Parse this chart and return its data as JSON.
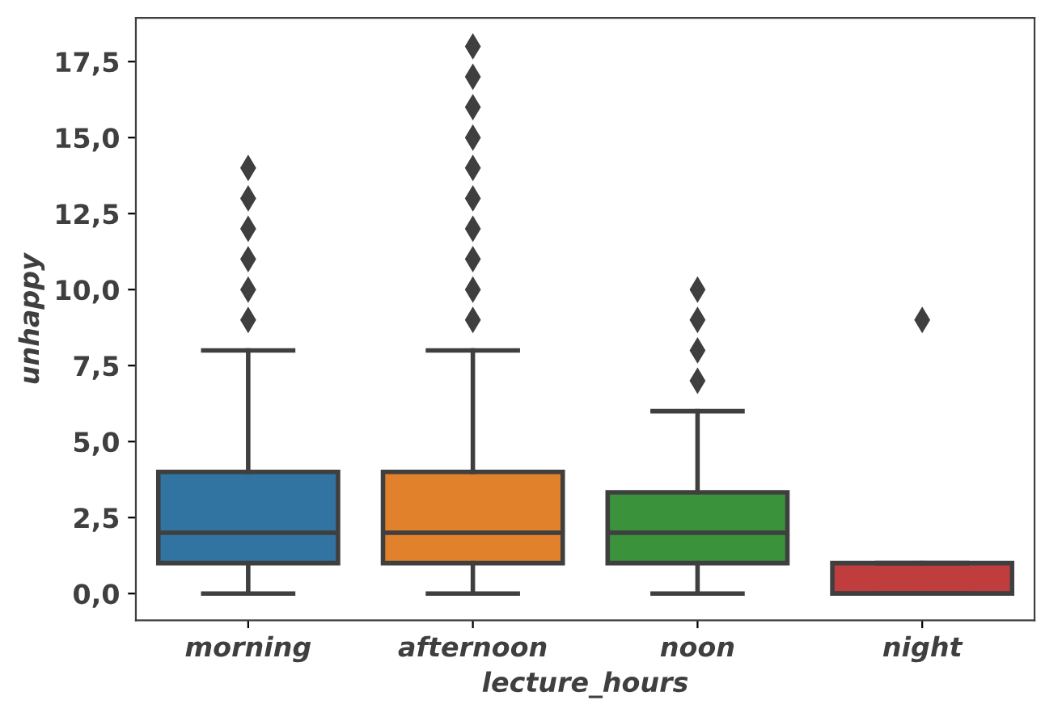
{
  "chart_data": {
    "type": "box",
    "xlabel": "lecture_hours",
    "ylabel": "unhappy",
    "categories": [
      "morning",
      "afternoon",
      "noon",
      "night"
    ],
    "colors": [
      "#3274a1",
      "#e1812c",
      "#3a923a",
      "#c03d3e"
    ],
    "boxes": [
      {
        "low": 0,
        "q1": 1,
        "median": 2,
        "q3": 4,
        "high": 8,
        "outliers": [
          9,
          10,
          11,
          12,
          13,
          14
        ]
      },
      {
        "low": 0,
        "q1": 1,
        "median": 2,
        "q3": 4,
        "high": 8,
        "outliers": [
          9,
          10,
          11,
          12,
          13,
          14,
          15,
          16,
          17,
          18
        ]
      },
      {
        "low": 0,
        "q1": 1,
        "median": 2,
        "q3": 3.33,
        "high": 6,
        "outliers": [
          7,
          8,
          9,
          10
        ]
      },
      {
        "low": 0,
        "q1": 0,
        "median": 0,
        "q3": 1,
        "high": 1,
        "outliers": [
          9
        ]
      }
    ],
    "ylim": [
      -0.88,
      18.94
    ],
    "yticks": [
      {
        "value": 0,
        "label": "0,0"
      },
      {
        "value": 2.5,
        "label": "2,5"
      },
      {
        "value": 5,
        "label": "5,0"
      },
      {
        "value": 7.5,
        "label": "7,5"
      },
      {
        "value": 10,
        "label": "10,0"
      },
      {
        "value": 12.5,
        "label": "12,5"
      },
      {
        "value": 15,
        "label": "15,0"
      },
      {
        "value": 17.5,
        "label": "17,5"
      }
    ],
    "grid": false,
    "legend": false
  }
}
